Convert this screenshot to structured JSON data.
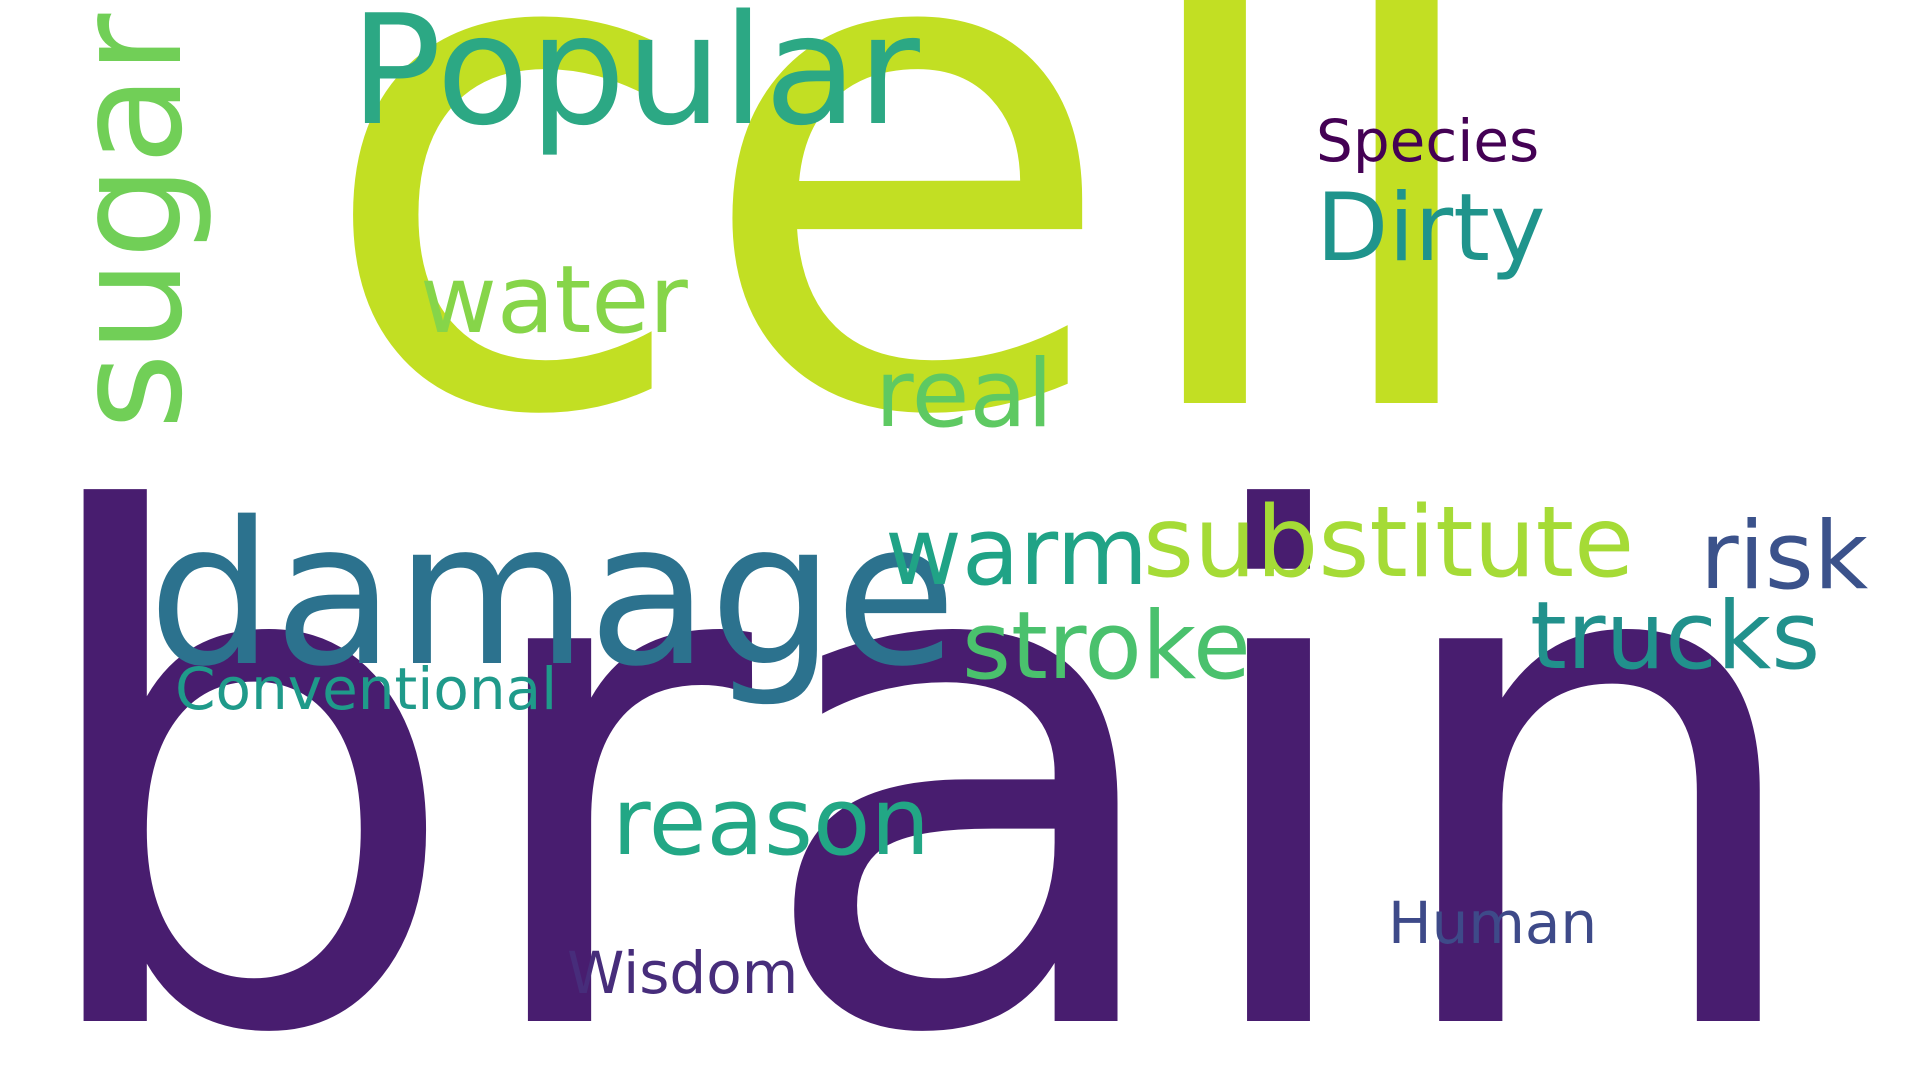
{
  "words": [
    {
      "text": "brain",
      "color": "#481d6f"
    },
    {
      "text": "cell",
      "color": "#c2df23"
    },
    {
      "text": "Popular",
      "color": "#2ca884"
    },
    {
      "text": "sugar",
      "color": "#71cf57"
    },
    {
      "text": "damage",
      "color": "#2c728e"
    },
    {
      "text": "water",
      "color": "#86d549"
    },
    {
      "text": "real",
      "color": "#5ec962"
    },
    {
      "text": "Species",
      "color": "#440154"
    },
    {
      "text": "Dirty",
      "color": "#1f948c"
    },
    {
      "text": "warm",
      "color": "#20a386"
    },
    {
      "text": "substitute",
      "color": "#a5db36"
    },
    {
      "text": "risk",
      "color": "#3b528b"
    },
    {
      "text": "stroke",
      "color": "#4ac16d"
    },
    {
      "text": "trucks",
      "color": "#21918c"
    },
    {
      "text": "Conventional",
      "color": "#1f9a8a"
    },
    {
      "text": "reason",
      "color": "#22a785"
    },
    {
      "text": "Human",
      "color": "#3e4a89"
    },
    {
      "text": "Wisdom",
      "color": "#472d7b"
    }
  ]
}
